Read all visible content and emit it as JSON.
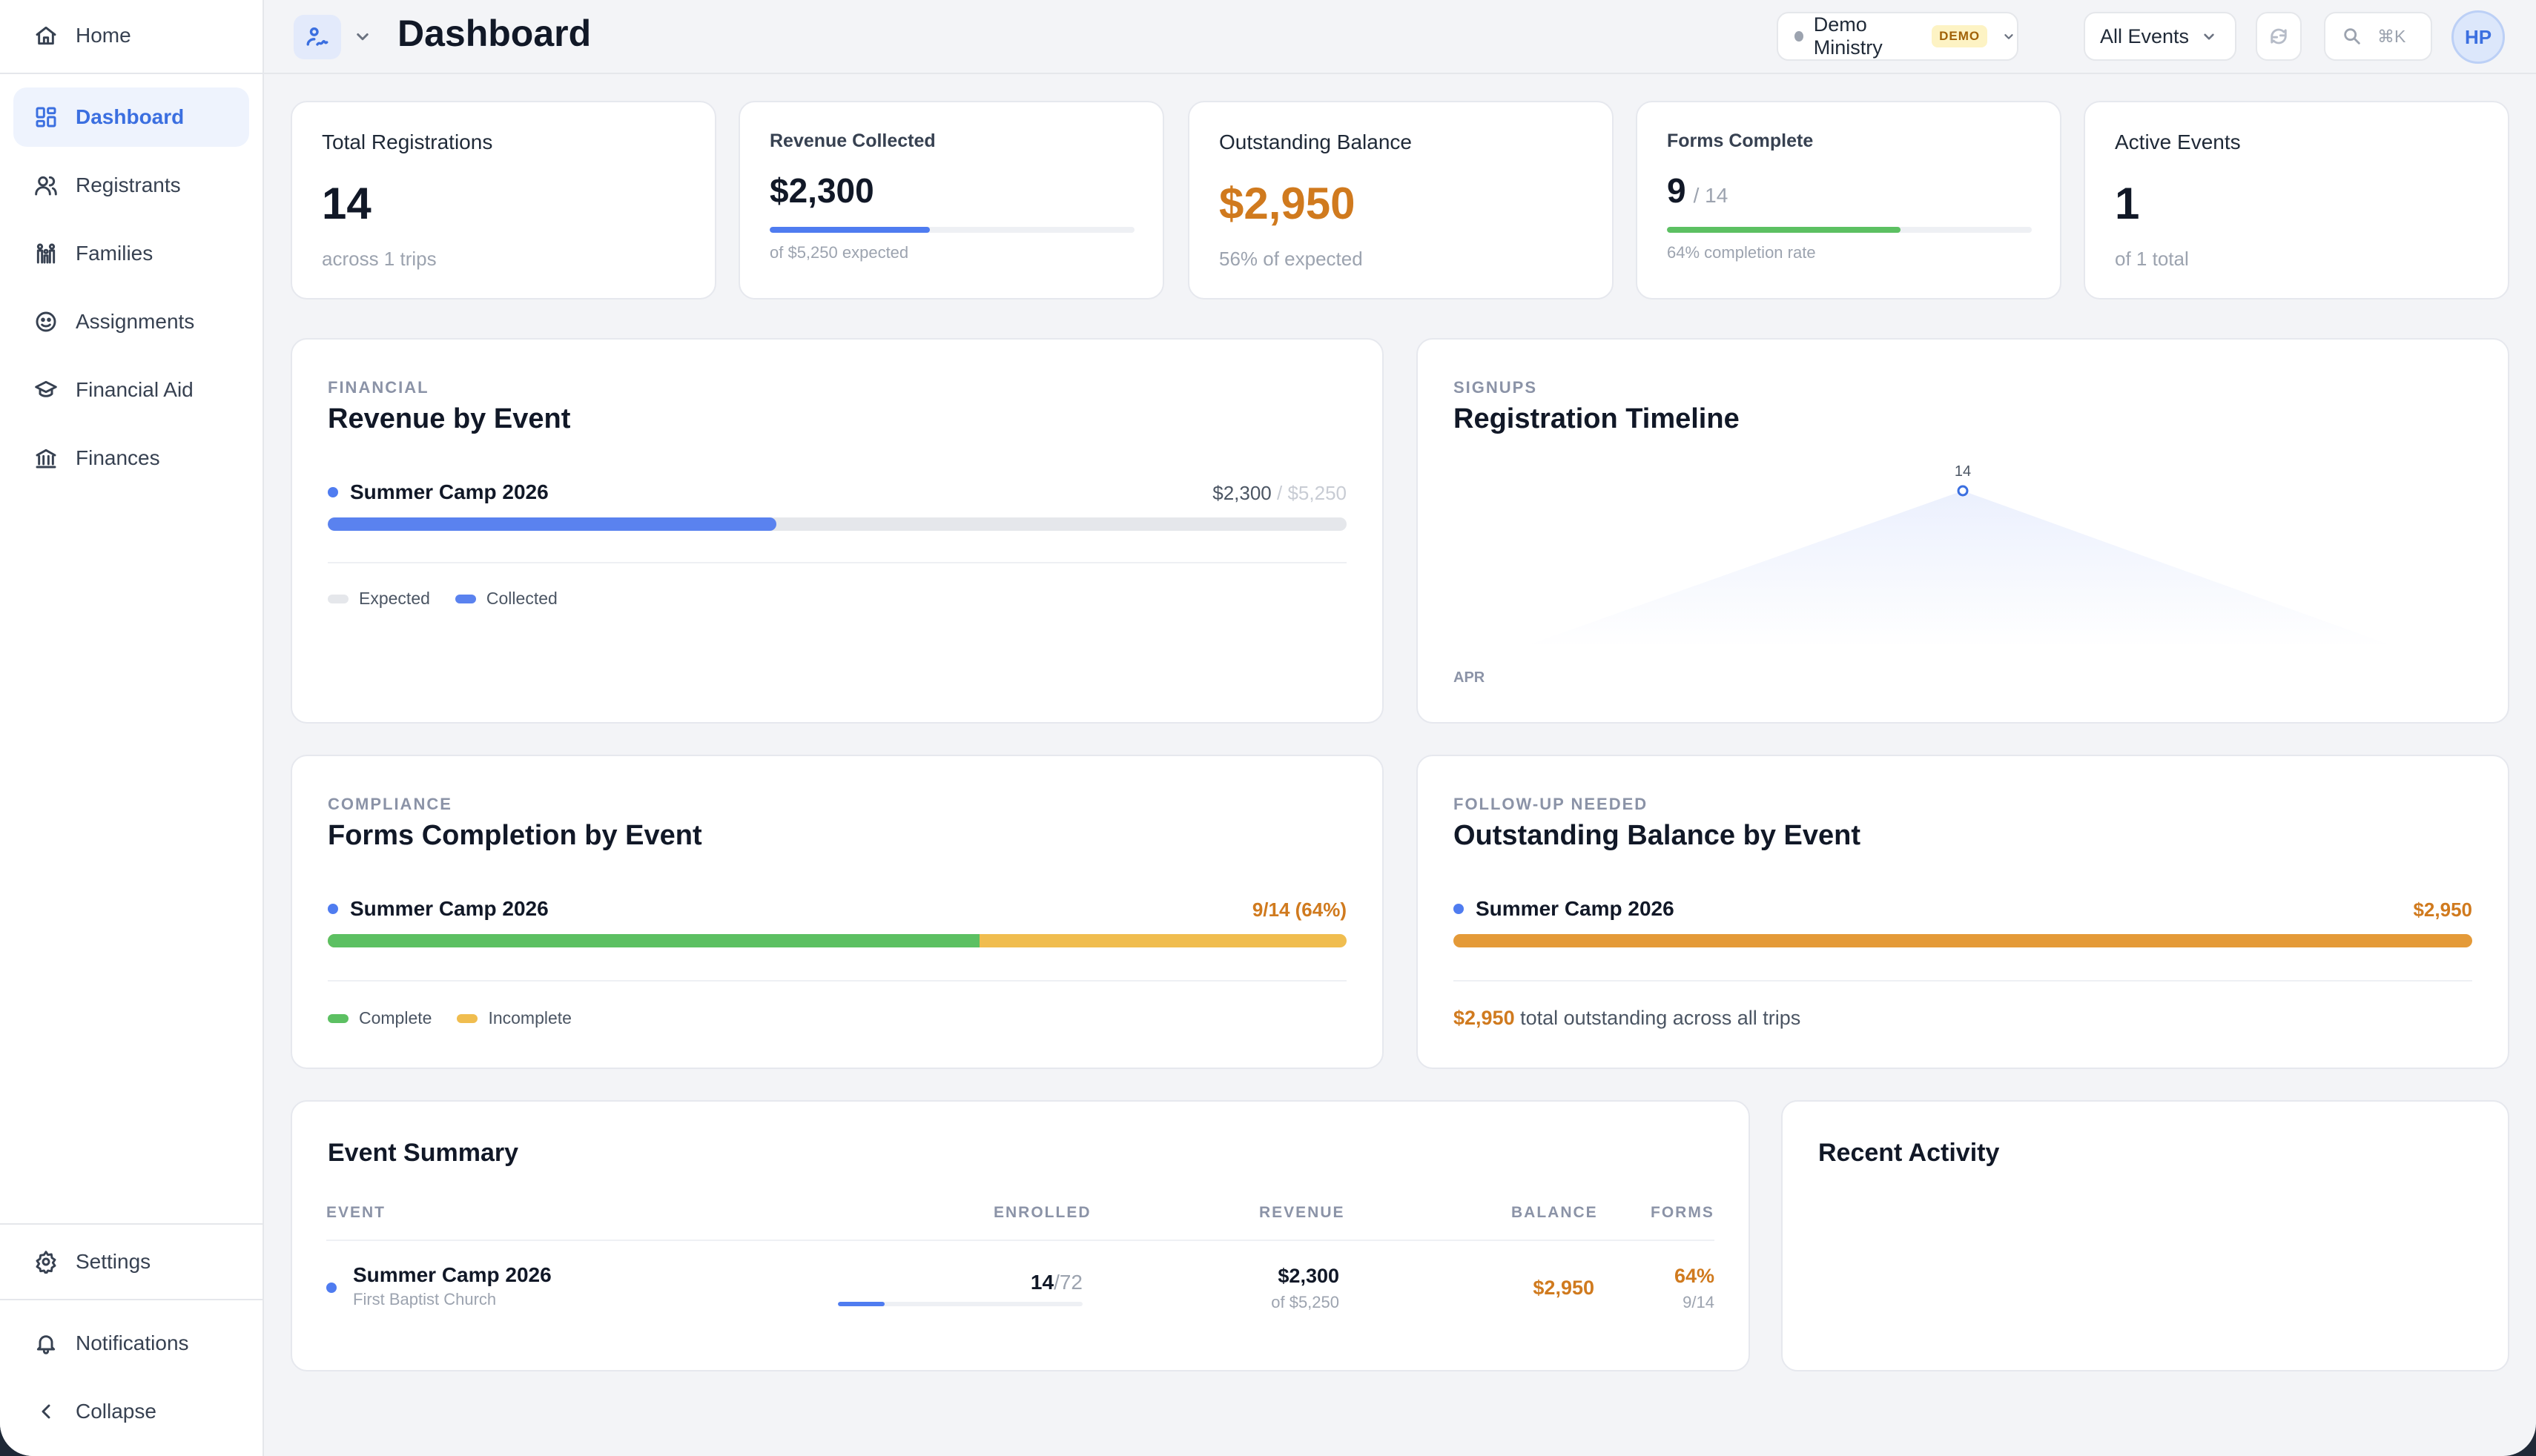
{
  "sidebar": {
    "items": [
      {
        "label": "Home",
        "icon": "home-icon"
      },
      {
        "label": "Dashboard",
        "icon": "dashboard-icon",
        "active": true
      },
      {
        "label": "Registrants",
        "icon": "users-icon"
      },
      {
        "label": "Families",
        "icon": "family-icon"
      },
      {
        "label": "Assignments",
        "icon": "smile-icon"
      },
      {
        "label": "Financial Aid",
        "icon": "graduation-cap-icon"
      },
      {
        "label": "Finances",
        "icon": "bank-icon"
      }
    ],
    "settings_label": "Settings",
    "notifications_label": "Notifications",
    "collapse_label": "Collapse"
  },
  "header": {
    "title": "Dashboard",
    "org_name": "Demo Ministry",
    "org_badge": "DEMO",
    "event_filter": "All Events",
    "search_shortcut": "⌘K",
    "avatar_initials": "HP"
  },
  "stats": {
    "total_registrations": {
      "label": "Total Registrations",
      "value": "14",
      "sub": "across 1 trips"
    },
    "revenue_collected": {
      "label": "Revenue Collected",
      "value": "$2,300",
      "sub": "of $5,250 expected",
      "progress": 0.44
    },
    "outstanding_balance": {
      "label": "Outstanding Balance",
      "value": "$2,950",
      "sub": "56% of expected"
    },
    "forms_complete": {
      "label": "Forms Complete",
      "value": "9",
      "total": "/ 14",
      "sub": "64% completion rate",
      "progress": 0.64
    },
    "active_events": {
      "label": "Active Events",
      "value": "1",
      "sub": "of 1 total"
    }
  },
  "revenue_by_event": {
    "eyebrow": "FINANCIAL",
    "title": "Revenue by Event",
    "rows": [
      {
        "name": "Summer Camp 2026",
        "collected": "$2,300",
        "sep": "/",
        "expected": "$5,250",
        "progress": 0.44
      }
    ],
    "legend": {
      "expected": "Expected",
      "collected": "Collected"
    }
  },
  "registration_timeline": {
    "eyebrow": "SIGNUPS",
    "title": "Registration Timeline",
    "chart_data": {
      "type": "area",
      "x": [
        "APR"
      ],
      "series": [
        {
          "values": [
            14
          ]
        }
      ]
    },
    "point_label": "14",
    "x_label": "APR"
  },
  "forms_by_event": {
    "eyebrow": "COMPLIANCE",
    "title": "Forms Completion by Event",
    "rows": [
      {
        "name": "Summer Camp 2026",
        "value": "9/14 (64%)",
        "progress": 0.64
      }
    ],
    "legend": {
      "complete": "Complete",
      "incomplete": "Incomplete"
    }
  },
  "balance_by_event": {
    "eyebrow": "FOLLOW-UP NEEDED",
    "title": "Outstanding Balance by Event",
    "rows": [
      {
        "name": "Summer Camp 2026",
        "value": "$2,950"
      }
    ],
    "total_value": "$2,950",
    "total_text": "total outstanding across all trips"
  },
  "event_summary": {
    "title": "Event Summary",
    "columns": [
      "EVENT",
      "ENROLLED",
      "REVENUE",
      "BALANCE",
      "FORMS"
    ],
    "rows": [
      {
        "name": "Summer Camp 2026",
        "org": "First Baptist Church",
        "enrolled": "14",
        "capacity": "/72",
        "enrolled_progress": 0.19,
        "revenue": "$2,300",
        "revenue_sub": "of $5,250",
        "balance": "$2,950",
        "forms_pct": "64%",
        "forms_count": "9/14"
      }
    ]
  },
  "recent_activity": {
    "title": "Recent Activity"
  },
  "colors": {
    "accent": "#3b6fe0",
    "blue_bar": "#5a82ef",
    "green": "#5cc062",
    "yellow": "#f0bd4f",
    "orange": "#e49a38",
    "orange_text": "#d07a1e"
  }
}
